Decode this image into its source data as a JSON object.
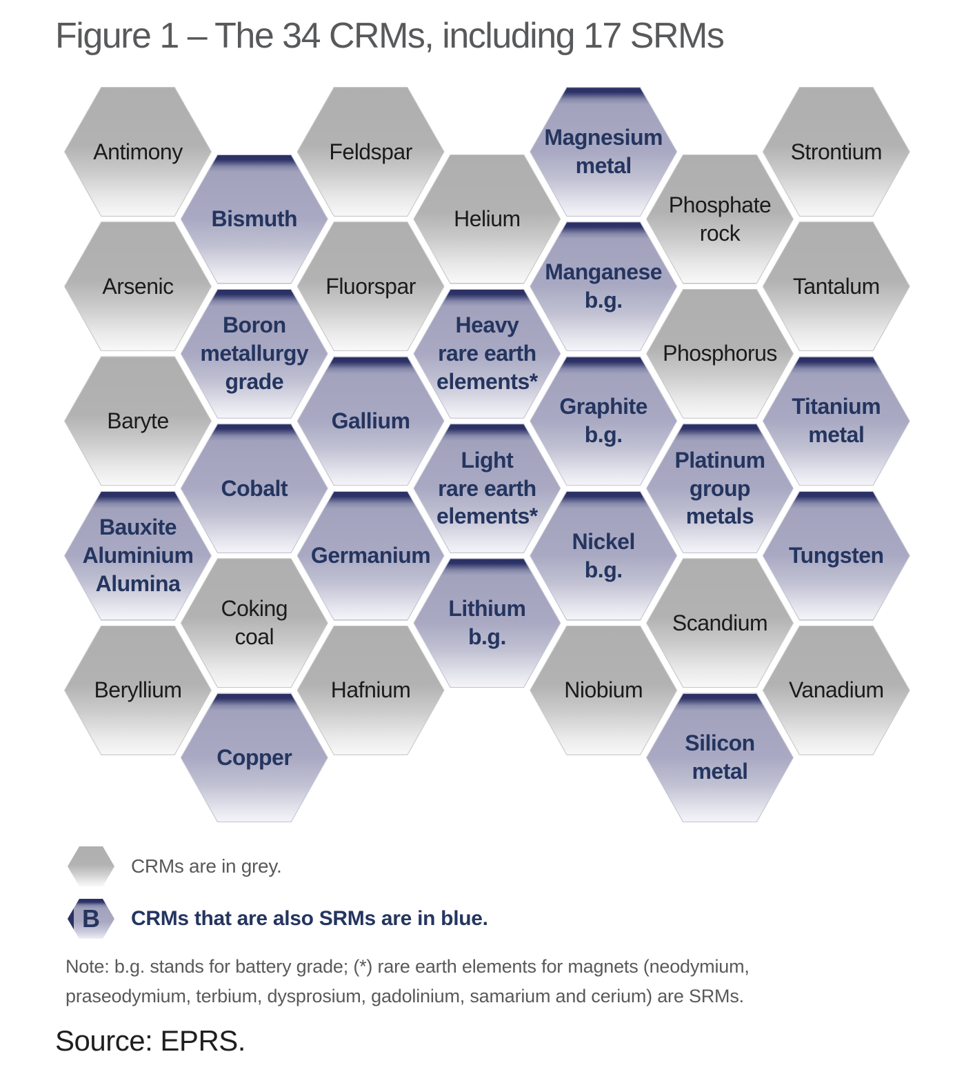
{
  "title": "Figure 1 – The 34 CRMs, including 17 SRMs",
  "colors": {
    "crm_grey": "#b0b0b0",
    "srm_blue": "#a9a9c3",
    "srm_band_navy": "#2c3164",
    "srm_text_navy": "#24355f",
    "crm_text": "#1b1b1b",
    "caption_grey": "#58595b"
  },
  "legend": {
    "crm": {
      "icon": "grey-hexagon",
      "label": "CRMs are in grey."
    },
    "srm": {
      "icon": "blue-hexagon",
      "icon_letter": "B",
      "label": "CRMs that are also SRMs are in blue."
    }
  },
  "note": {
    "line1": "Note: b.g. stands for battery grade; (*) rare earth elements for magnets (neodymium,",
    "line2": "praseodymium, terbium, dysprosium, gadolinium, samarium and cerium) are SRMs."
  },
  "source": "Source: EPRS.",
  "hexagons": [
    {
      "name": "Antimony",
      "lines": [
        "Antimony"
      ],
      "type": "crm",
      "col": 1,
      "row": 1
    },
    {
      "name": "Feldspar",
      "lines": [
        "Feldspar"
      ],
      "type": "crm",
      "col": 3,
      "row": 1
    },
    {
      "name": "Magnesium metal",
      "lines": [
        "Magnesium",
        "metal"
      ],
      "type": "srm",
      "col": 5,
      "row": 1
    },
    {
      "name": "Strontium",
      "lines": [
        "Strontium"
      ],
      "type": "crm",
      "col": 7,
      "row": 1
    },
    {
      "name": "Bismuth",
      "lines": [
        "Bismuth"
      ],
      "type": "srm",
      "col": 2,
      "row": 1.5
    },
    {
      "name": "Helium",
      "lines": [
        "Helium"
      ],
      "type": "crm",
      "col": 4,
      "row": 1.5
    },
    {
      "name": "Phosphate rock",
      "lines": [
        "Phosphate",
        "rock"
      ],
      "type": "crm",
      "col": 6,
      "row": 1.5
    },
    {
      "name": "Arsenic",
      "lines": [
        "Arsenic"
      ],
      "type": "crm",
      "col": 1,
      "row": 2
    },
    {
      "name": "Fluorspar",
      "lines": [
        "Fluorspar"
      ],
      "type": "crm",
      "col": 3,
      "row": 2
    },
    {
      "name": "Manganese b.g.",
      "lines": [
        "Manganese",
        "b.g."
      ],
      "type": "srm",
      "col": 5,
      "row": 2
    },
    {
      "name": "Tantalum",
      "lines": [
        "Tantalum"
      ],
      "type": "crm",
      "col": 7,
      "row": 2
    },
    {
      "name": "Boron metallurgy grade",
      "lines": [
        "Boron",
        "metallurgy",
        "grade"
      ],
      "type": "srm",
      "col": 2,
      "row": 2.5
    },
    {
      "name": "Heavy rare earth elements*",
      "lines": [
        "Heavy",
        "rare earth",
        "elements*"
      ],
      "type": "srm",
      "col": 4,
      "row": 2.5
    },
    {
      "name": "Phosphorus",
      "lines": [
        "Phosphorus"
      ],
      "type": "crm",
      "col": 6,
      "row": 2.5
    },
    {
      "name": "Baryte",
      "lines": [
        "Baryte"
      ],
      "type": "crm",
      "col": 1,
      "row": 3
    },
    {
      "name": "Gallium",
      "lines": [
        "Gallium"
      ],
      "type": "srm",
      "col": 3,
      "row": 3
    },
    {
      "name": "Graphite b.g.",
      "lines": [
        "Graphite",
        "b.g."
      ],
      "type": "srm",
      "col": 5,
      "row": 3
    },
    {
      "name": "Titanium metal",
      "lines": [
        "Titanium",
        "metal"
      ],
      "type": "srm",
      "col": 7,
      "row": 3
    },
    {
      "name": "Cobalt",
      "lines": [
        "Cobalt"
      ],
      "type": "srm",
      "col": 2,
      "row": 3.5
    },
    {
      "name": "Light rare earth elements*",
      "lines": [
        "Light",
        "rare earth",
        "elements*"
      ],
      "type": "srm",
      "col": 4,
      "row": 3.5
    },
    {
      "name": "Platinum group metals",
      "lines": [
        "Platinum",
        "group",
        "metals"
      ],
      "type": "srm",
      "col": 6,
      "row": 3.5
    },
    {
      "name": "Bauxite Aluminium Alumina",
      "lines": [
        "Bauxite",
        "Aluminium",
        "Alumina"
      ],
      "type": "srm",
      "col": 1,
      "row": 4
    },
    {
      "name": "Germanium",
      "lines": [
        "Germanium"
      ],
      "type": "srm",
      "col": 3,
      "row": 4
    },
    {
      "name": "Nickel b.g.",
      "lines": [
        "Nickel",
        "b.g."
      ],
      "type": "srm",
      "col": 5,
      "row": 4
    },
    {
      "name": "Tungsten",
      "lines": [
        "Tungsten"
      ],
      "type": "srm",
      "col": 7,
      "row": 4
    },
    {
      "name": "Coking coal",
      "lines": [
        "Coking",
        "coal"
      ],
      "type": "crm",
      "col": 2,
      "row": 4.5
    },
    {
      "name": "Lithium b.g.",
      "lines": [
        "Lithium",
        "b.g."
      ],
      "type": "srm",
      "col": 4,
      "row": 4.5
    },
    {
      "name": "Scandium",
      "lines": [
        "Scandium"
      ],
      "type": "crm",
      "col": 6,
      "row": 4.5
    },
    {
      "name": "Beryllium",
      "lines": [
        "Beryllium"
      ],
      "type": "crm",
      "col": 1,
      "row": 5
    },
    {
      "name": "Hafnium",
      "lines": [
        "Hafnium"
      ],
      "type": "crm",
      "col": 3,
      "row": 5
    },
    {
      "name": "Niobium",
      "lines": [
        "Niobium"
      ],
      "type": "crm",
      "col": 5,
      "row": 5
    },
    {
      "name": "Vanadium",
      "lines": [
        "Vanadium"
      ],
      "type": "crm",
      "col": 7,
      "row": 5
    },
    {
      "name": "Copper",
      "lines": [
        "Copper"
      ],
      "type": "srm",
      "col": 2,
      "row": 5.5
    },
    {
      "name": "Silicon metal",
      "lines": [
        "Silicon",
        "metal"
      ],
      "type": "srm",
      "col": 6,
      "row": 5.5
    }
  ]
}
